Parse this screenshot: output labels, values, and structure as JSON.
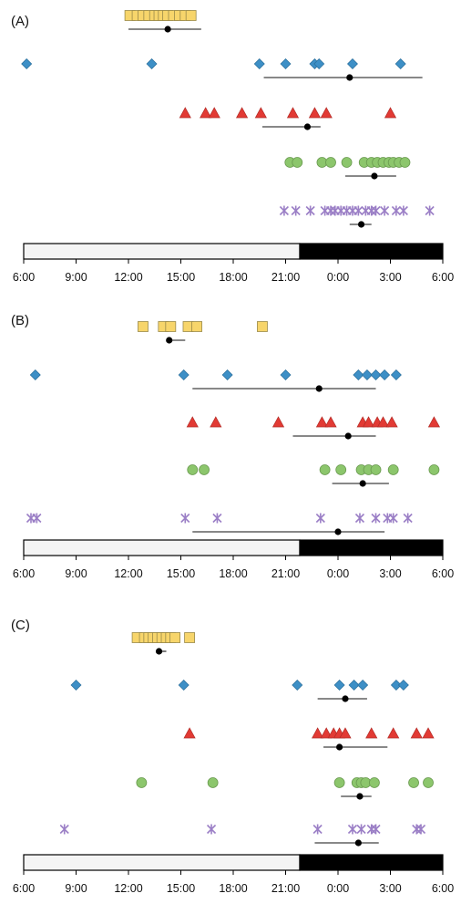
{
  "chart_data": {
    "type": "scatter",
    "x_axis_ticks": [
      "6:00",
      "9:00",
      "12:00",
      "15:00",
      "18:00",
      "21:00",
      "0:00",
      "3:00",
      "6:00"
    ],
    "colors": {
      "square": "#f7d56b",
      "diamond": "#3d8fc6",
      "triangle": "#e23a34",
      "circle": "#8cc66c",
      "cross": "#9b7fc6"
    },
    "panels": [
      {
        "label": "(A)",
        "light_dark_bar": {
          "light": [
            "6:00",
            "22:00"
          ],
          "dark": [
            "22:00",
            "6:00"
          ]
        },
        "series": [
          {
            "marker": "square",
            "x": [
              "12:05",
              "12:30",
              "12:50",
              "13:10",
              "13:30",
              "13:45",
              "14:00",
              "14:15",
              "14:35",
              "14:55",
              "15:15",
              "15:35"
            ],
            "mean": "14:15",
            "range": [
              "12:00",
              "16:10"
            ]
          },
          {
            "marker": "diamond",
            "x": [
              "6:10",
              "13:20",
              "19:30",
              "21:00",
              "22:40",
              "22:55",
              "0:50",
              "3:35"
            ],
            "mean": "0:40",
            "range": [
              "19:45",
              "4:50"
            ]
          },
          {
            "marker": "triangle",
            "x": [
              "15:15",
              "16:25",
              "16:55",
              "18:30",
              "19:35",
              "21:25",
              "22:40",
              "23:20",
              "3:00"
            ],
            "mean": "22:15",
            "range": [
              "19:40",
              "23:00"
            ]
          },
          {
            "marker": "circle",
            "x": [
              "21:15",
              "21:40",
              "23:05",
              "23:35",
              "0:30",
              "1:30",
              "1:55",
              "2:15",
              "2:35",
              "2:55",
              "3:10",
              "3:30",
              "3:50"
            ],
            "mean": "2:05",
            "range": [
              "0:25",
              "3:20"
            ]
          },
          {
            "marker": "cross",
            "x": [
              "20:55",
              "21:35",
              "22:25",
              "23:15",
              "23:35",
              "23:50",
              "0:10",
              "0:30",
              "0:50",
              "1:10",
              "1:35",
              "1:55",
              "2:10",
              "2:40",
              "3:20",
              "3:45",
              "5:15"
            ],
            "mean": "1:20",
            "range": [
              "0:40",
              "1:55"
            ]
          }
        ]
      },
      {
        "label": "(B)",
        "light_dark_bar": {
          "light": [
            "6:00",
            "22:00"
          ],
          "dark": [
            "22:00",
            "6:00"
          ]
        },
        "series": [
          {
            "marker": "square",
            "x": [
              "12:50",
              "14:00",
              "14:25",
              "15:25",
              "15:55",
              "19:40"
            ],
            "mean": "14:20",
            "range": [
              "14:20",
              "15:15"
            ]
          },
          {
            "marker": "diamond",
            "x": [
              "6:40",
              "15:10",
              "17:40",
              "21:00",
              "1:10",
              "1:40",
              "2:10",
              "2:40",
              "3:20"
            ],
            "mean": "22:55",
            "range": [
              "15:40",
              "2:10"
            ]
          },
          {
            "marker": "triangle",
            "x": [
              "15:40",
              "17:00",
              "20:35",
              "23:05",
              "23:35",
              "1:25",
              "1:45",
              "2:15",
              "2:35",
              "3:05",
              "5:30"
            ],
            "mean": "0:35",
            "range": [
              "21:25",
              "2:10"
            ]
          },
          {
            "marker": "circle",
            "x": [
              "15:40",
              "16:20",
              "23:15",
              "0:10",
              "1:20",
              "1:45",
              "2:10",
              "3:10",
              "5:30"
            ],
            "mean": "1:25",
            "range": [
              "23:40",
              "2:55"
            ]
          },
          {
            "marker": "cross",
            "x": [
              "6:25",
              "6:45",
              "15:15",
              "17:05",
              "23:00",
              "1:15",
              "2:10",
              "2:50",
              "3:10",
              "4:00"
            ],
            "mean": "0:00",
            "range": [
              "15:40",
              "2:40"
            ]
          }
        ]
      },
      {
        "label": "(C)",
        "light_dark_bar": {
          "light": [
            "6:00",
            "22:00"
          ],
          "dark": [
            "22:00",
            "6:00"
          ]
        },
        "series": [
          {
            "marker": "square",
            "x": [
              "12:30",
              "12:55",
              "13:10",
              "13:25",
              "13:40",
              "13:55",
              "14:10",
              "14:25",
              "14:40",
              "15:30"
            ],
            "mean": "13:45",
            "range": [
              "13:35",
              "14:10"
            ]
          },
          {
            "marker": "diamond",
            "x": [
              "9:00",
              "15:10",
              "21:40",
              "0:05",
              "0:55",
              "1:25",
              "3:20",
              "3:45"
            ],
            "mean": "0:25",
            "range": [
              "22:50",
              "1:40"
            ]
          },
          {
            "marker": "triangle",
            "x": [
              "15:30",
              "22:50",
              "23:20",
              "23:45",
              "0:05",
              "0:25",
              "1:55",
              "3:10",
              "4:30",
              "5:10"
            ],
            "mean": "0:05",
            "range": [
              "23:10",
              "2:50"
            ]
          },
          {
            "marker": "circle",
            "x": [
              "12:45",
              "16:50",
              "0:05",
              "1:05",
              "1:20",
              "1:35",
              "2:05",
              "4:20",
              "5:10"
            ],
            "mean": "1:15",
            "range": [
              "0:10",
              "1:55"
            ]
          },
          {
            "marker": "cross",
            "x": [
              "8:20",
              "16:45",
              "22:50",
              "0:50",
              "1:20",
              "1:55",
              "2:10",
              "4:30",
              "4:45"
            ],
            "mean": "1:10",
            "range": [
              "22:40",
              "2:20"
            ]
          }
        ]
      }
    ]
  }
}
